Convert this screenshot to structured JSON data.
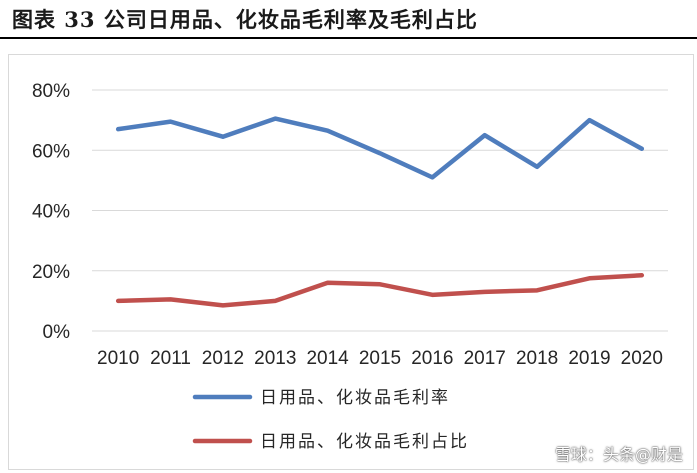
{
  "header": {
    "title": "图表 33 公司日用品、化妆品毛利率及毛利占比"
  },
  "watermark": "雪球：头条@财是",
  "chart_data": {
    "type": "line",
    "categories": [
      "2010",
      "2011",
      "2012",
      "2013",
      "2014",
      "2015",
      "2016",
      "2017",
      "2018",
      "2019",
      "2020"
    ],
    "y_ticks": [
      "0%",
      "20%",
      "40%",
      "60%",
      "80%"
    ],
    "ylim": [
      0,
      80
    ],
    "grid": "horizontal",
    "legend_position": "bottom",
    "series": [
      {
        "name": "日用品、化妆品毛利率",
        "color": "#4F7DBD",
        "values": [
          67,
          69.5,
          64.5,
          70.5,
          66.5,
          59,
          51,
          65,
          54.5,
          70,
          60.5
        ]
      },
      {
        "name": "日用品、化妆品毛利占比",
        "color": "#C0504D",
        "values": [
          10,
          10.5,
          8.5,
          10,
          16,
          15.5,
          12,
          13,
          13.5,
          17.5,
          18.5
        ]
      }
    ]
  }
}
